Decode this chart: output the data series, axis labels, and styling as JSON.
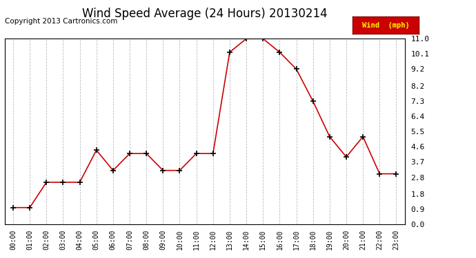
{
  "title": "Wind Speed Average (24 Hours) 20130214",
  "copyright": "Copyright 2013 Cartronics.com",
  "legend_label": "Wind  (mph)",
  "x_labels": [
    "00:00",
    "01:00",
    "02:00",
    "03:00",
    "04:00",
    "05:00",
    "06:00",
    "07:00",
    "08:00",
    "09:00",
    "10:00",
    "11:00",
    "12:00",
    "13:00",
    "14:00",
    "15:00",
    "16:00",
    "17:00",
    "18:00",
    "19:00",
    "20:00",
    "21:00",
    "22:00",
    "23:00"
  ],
  "y_ticks": [
    0.0,
    0.9,
    1.8,
    2.8,
    3.7,
    4.6,
    5.5,
    6.4,
    7.3,
    8.2,
    9.2,
    10.1,
    11.0
  ],
  "ylim": [
    0.0,
    11.0
  ],
  "values": [
    1.0,
    1.0,
    2.5,
    2.5,
    2.5,
    4.4,
    3.2,
    4.2,
    4.2,
    3.2,
    3.2,
    4.2,
    4.2,
    10.2,
    11.0,
    11.0,
    10.2,
    9.2,
    7.3,
    5.2,
    4.0,
    5.2,
    3.0,
    3.0
  ],
  "line_color": "#cc0000",
  "marker_color": "#000000",
  "bg_color": "#ffffff",
  "grid_color": "#bbbbbb",
  "title_fontsize": 12,
  "copyright_fontsize": 7.5,
  "legend_bg": "#cc0000",
  "legend_text_color": "#ffff00",
  "figsize": [
    6.9,
    3.75
  ],
  "dpi": 100
}
